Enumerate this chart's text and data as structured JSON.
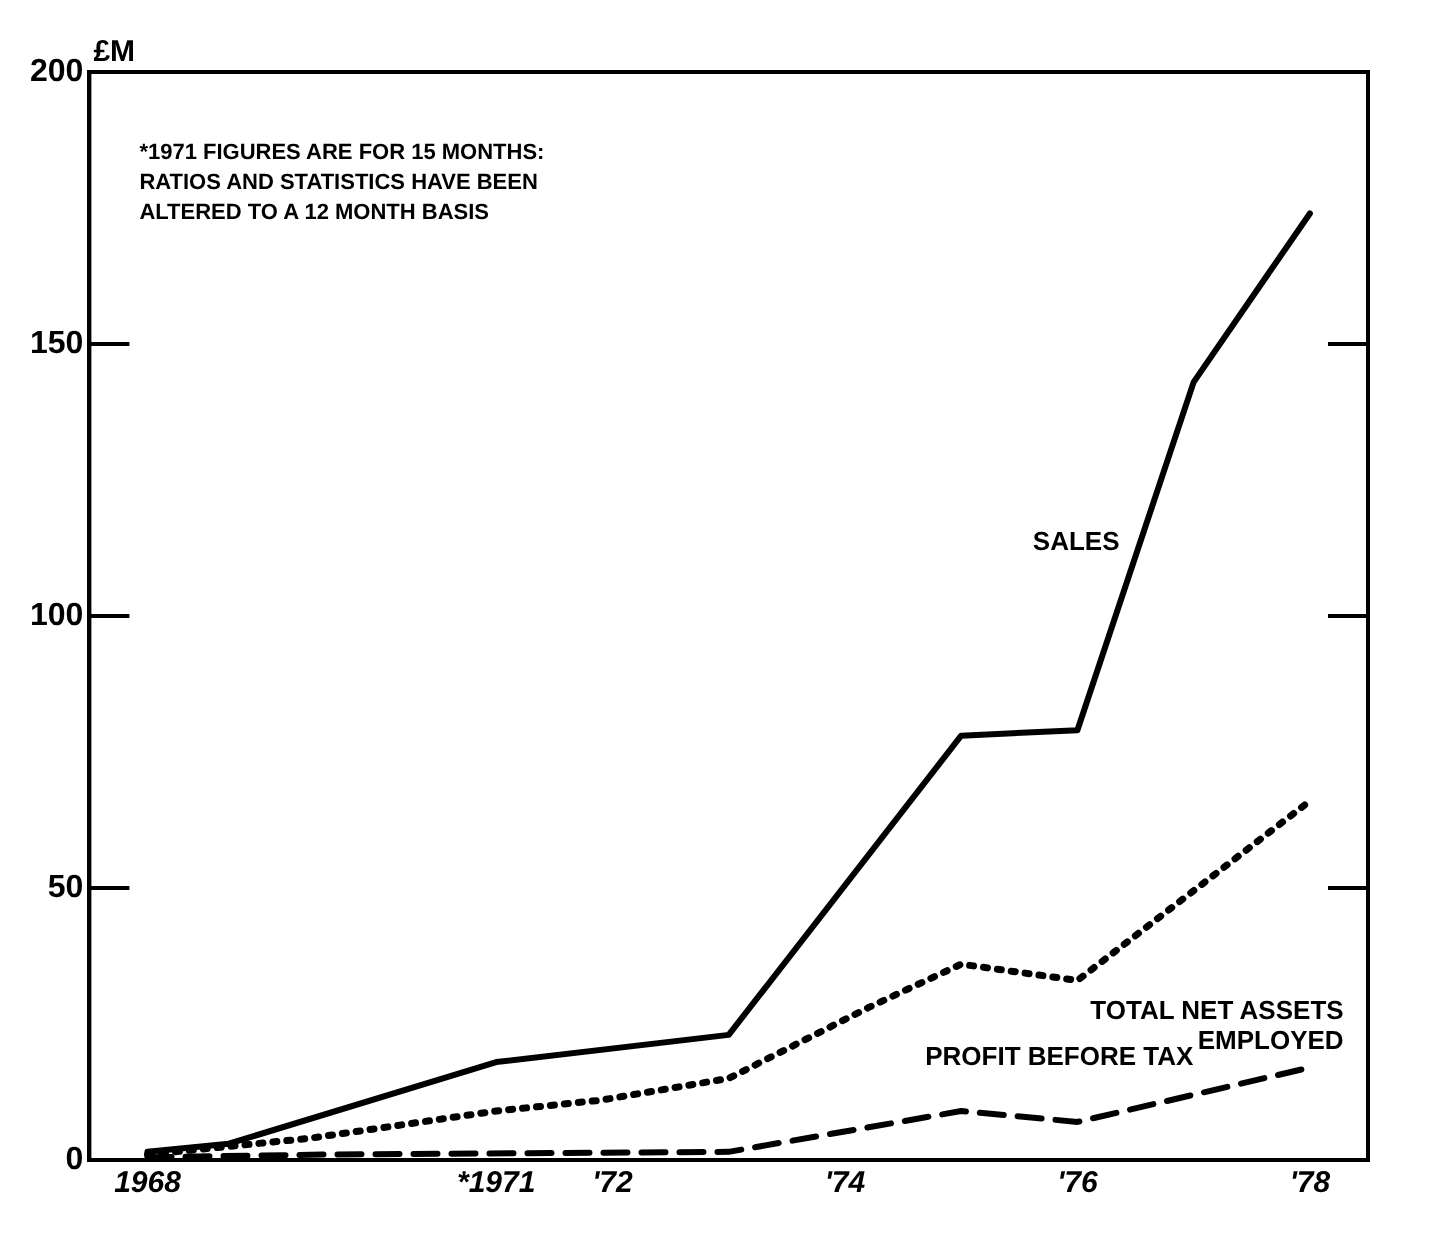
{
  "chart_data": {
    "type": "line",
    "ylabel": "£M",
    "annotations": [
      "*1971 FIGURES ARE FOR 15 MONTHS: RATIOS AND STATISTICS HAVE BEEN ALTERED TO A 12 MONTH BASIS"
    ],
    "xlim": [
      1967.5,
      1978.5
    ],
    "xticks": [
      {
        "value": 1968,
        "label": "1968"
      },
      {
        "value": 1971,
        "label": "*1971"
      },
      {
        "value": 1972,
        "label": "'72"
      },
      {
        "value": 1974,
        "label": "'74"
      },
      {
        "value": 1976,
        "label": "'76"
      },
      {
        "value": 1978,
        "label": "'78"
      }
    ],
    "ylim": [
      0,
      200
    ],
    "yticks": [
      0,
      50,
      100,
      150,
      200
    ],
    "grid": false,
    "legend": false,
    "marker": "none",
    "series": [
      {
        "name": "SALES",
        "color": "#000000",
        "line_style": "solid",
        "x": [
          1968,
          1968.7,
          1971,
          1973,
          1975,
          1976,
          1977,
          1978
        ],
        "values": [
          1.5,
          3,
          18,
          23,
          78,
          79,
          143,
          174
        ]
      },
      {
        "name": "TOTAL NET ASSETS EMPLOYED",
        "color": "#000000",
        "line_style": "dotted",
        "x": [
          1968,
          1969.4,
          1971,
          1971.9,
          1973,
          1974.2,
          1975,
          1976,
          1978
        ],
        "values": [
          1,
          4,
          9,
          11,
          15,
          28,
          36,
          33,
          66
        ]
      },
      {
        "name": "PROFIT BEFORE TAX",
        "color": "#000000",
        "line_style": "dashed",
        "x": [
          1968,
          1969.5,
          1973,
          1975,
          1976,
          1978
        ],
        "values": [
          0.5,
          1,
          1.5,
          9,
          7,
          17
        ]
      }
    ]
  }
}
